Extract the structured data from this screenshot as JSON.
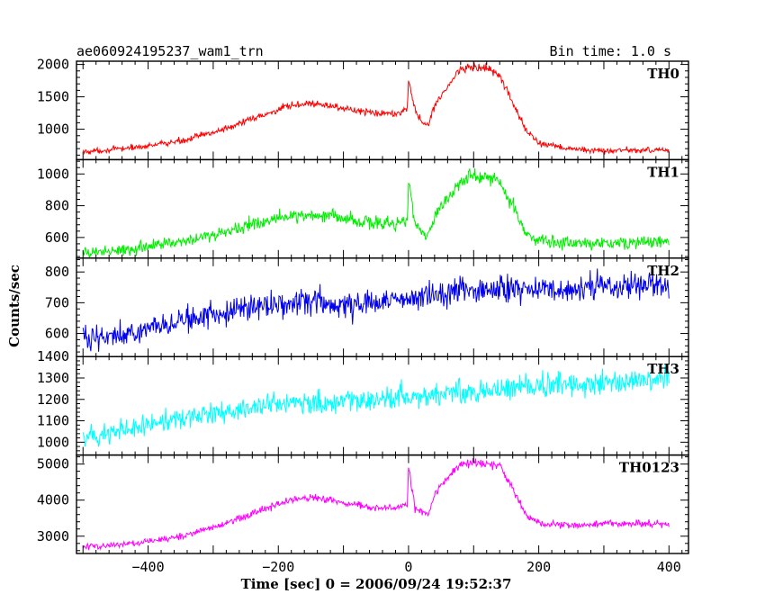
{
  "header": {
    "title": "ae060924195237_wam1_trn",
    "bin_time": "Bin time: 1.0 s"
  },
  "axes": {
    "xlabel": "Time [sec] 0 = 2006/09/24 19:52:37",
    "ylabel": "Counts/sec",
    "xlim": [
      -510,
      430
    ],
    "xticks": [
      -400,
      -200,
      0,
      200,
      400
    ],
    "xtick_labels": [
      "−400",
      "−200",
      "0",
      "200",
      "400"
    ]
  },
  "chart_data": {
    "type": "line",
    "title": "ae060924195237_wam1_trn",
    "xlabel": "Time [sec] 0 = 2006/09/24 19:52:37",
    "ylabel": "Counts/sec",
    "x_range": [
      -500,
      400
    ],
    "bin_time_s": 1.0,
    "panels": [
      {
        "name": "TH0",
        "color": "#ff0000",
        "ylim": [
          530,
          2050
        ],
        "yticks": [
          1000,
          1500,
          2000
        ],
        "keypoints_x": [
          -500,
          -450,
          -400,
          -350,
          -300,
          -250,
          -200,
          -170,
          -150,
          -100,
          -80,
          -50,
          -20,
          -2,
          0,
          10,
          20,
          30,
          40,
          60,
          80,
          100,
          120,
          140,
          160,
          180,
          200,
          250,
          300,
          400
        ],
        "keypoints_y": [
          650,
          690,
          740,
          820,
          950,
          1120,
          1300,
          1380,
          1400,
          1330,
          1280,
          1250,
          1260,
          1290,
          1780,
          1300,
          1100,
          1050,
          1380,
          1650,
          1950,
          1960,
          1940,
          1830,
          1400,
          1000,
          780,
          690,
          670,
          680
        ]
      },
      {
        "name": "TH1",
        "color": "#00ee00",
        "ylim": [
          470,
          1090
        ],
        "yticks": [
          600,
          800,
          1000
        ],
        "keypoints_x": [
          -500,
          -450,
          -400,
          -350,
          -300,
          -250,
          -200,
          -170,
          -150,
          -100,
          -80,
          -50,
          -20,
          -2,
          0,
          10,
          20,
          30,
          40,
          60,
          80,
          100,
          120,
          140,
          160,
          180,
          200,
          250,
          300,
          400
        ],
        "keypoints_y": [
          500,
          520,
          540,
          580,
          620,
          670,
          720,
          740,
          745,
          720,
          700,
          690,
          690,
          700,
          960,
          700,
          640,
          600,
          740,
          840,
          960,
          990,
          980,
          960,
          800,
          640,
          580,
          570,
          560,
          575
        ]
      },
      {
        "name": "TH2",
        "color": "#0000ee",
        "ylim": [
          525,
          845
        ],
        "yticks": [
          600,
          700,
          800
        ],
        "keypoints_x": [
          -500,
          -400,
          -300,
          -200,
          -150,
          -100,
          -50,
          0,
          50,
          100,
          150,
          200,
          300,
          400
        ],
        "keypoints_y": [
          585,
          615,
          660,
          700,
          705,
          690,
          700,
          720,
          735,
          740,
          738,
          742,
          750,
          760
        ]
      },
      {
        "name": "TH3",
        "color": "#00ffff",
        "ylim": [
          940,
          1400
        ],
        "yticks": [
          1000,
          1100,
          1200,
          1300,
          1400
        ],
        "keypoints_x": [
          -500,
          -400,
          -300,
          -200,
          -100,
          0,
          100,
          200,
          300,
          400
        ],
        "keypoints_y": [
          1020,
          1080,
          1140,
          1180,
          1190,
          1210,
          1240,
          1260,
          1280,
          1310
        ]
      },
      {
        "name": "TH0123",
        "color": "#ff00ff",
        "ylim": [
          2520,
          5250
        ],
        "yticks": [
          3000,
          4000,
          5000
        ],
        "keypoints_x": [
          -500,
          -450,
          -400,
          -350,
          -300,
          -250,
          -200,
          -170,
          -150,
          -100,
          -80,
          -50,
          -20,
          -2,
          0,
          10,
          20,
          30,
          40,
          60,
          80,
          100,
          120,
          140,
          160,
          180,
          200,
          250,
          300,
          400
        ],
        "keypoints_y": [
          2700,
          2750,
          2850,
          3000,
          3250,
          3550,
          3900,
          4050,
          4080,
          3950,
          3850,
          3800,
          3780,
          3850,
          4900,
          3800,
          3650,
          3600,
          4200,
          4600,
          5000,
          5050,
          5000,
          4950,
          4300,
          3600,
          3350,
          3300,
          3350,
          3350
        ]
      }
    ]
  }
}
